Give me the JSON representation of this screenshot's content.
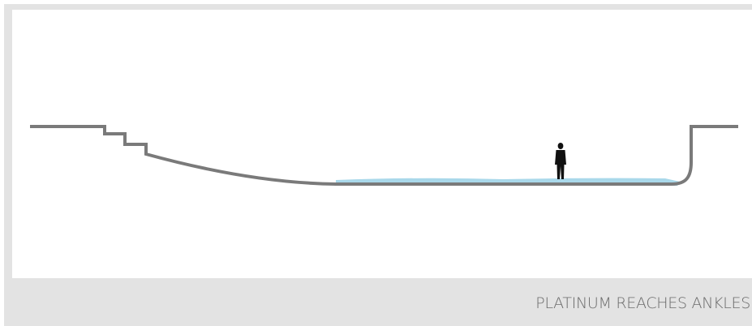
{
  "caption": {
    "text": "PLATINUM REACHES ANKLES"
  },
  "colors": {
    "frame": "#e3e3e3",
    "terrain_line": "#7a7a7a",
    "water": "#a9d8ea",
    "figure": "#111111",
    "caption_text": "#6b6b6b"
  },
  "icons": {
    "person": "standing-person-silhouette"
  }
}
